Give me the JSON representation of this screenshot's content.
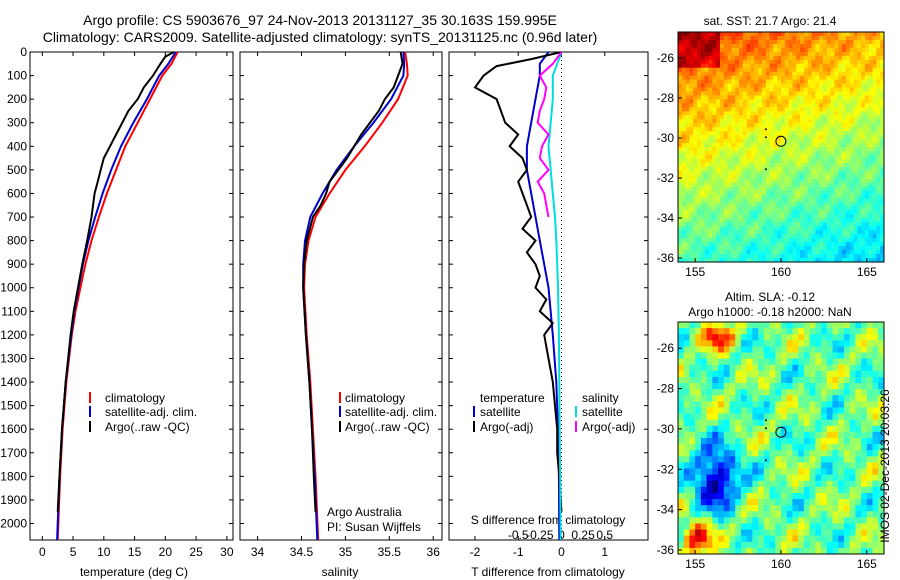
{
  "titles": {
    "line1": "Argo profile: CS 5903676_97 24-Nov-2013 20131127_35 30.163S 159.995E",
    "line2": "Climatology: CARS2009. Satellite-adjusted climatology: synTS_20131125.nc (0.96d later)"
  },
  "stamp": "IMOS 02-Dec-2013 20:03:26",
  "colors": {
    "climatology": "#ff0000",
    "satellite": "#0000cc",
    "argo": "#000000",
    "sal_satellite": "#00dddd",
    "sal_argo": "#ff00ff"
  },
  "chart_data": [
    {
      "id": "temperature",
      "type": "line",
      "xlabel": "temperature (deg C)",
      "ylabel": "",
      "xlim": [
        -2,
        31
      ],
      "ylim": [
        2070,
        0
      ],
      "x_ticks": [
        "0",
        "5",
        "10",
        "15",
        "20",
        "25",
        "30"
      ],
      "x_tick_values": [
        0,
        5,
        10,
        15,
        20,
        25,
        30
      ],
      "y_ticks": [
        "0",
        "100",
        "200",
        "300",
        "400",
        "500",
        "600",
        "700",
        "800",
        "900",
        "1000",
        "1100",
        "1200",
        "1300",
        "1400",
        "1500",
        "1600",
        "1700",
        "1800",
        "1900",
        "2000"
      ],
      "y_tick_values": [
        0,
        100,
        200,
        300,
        400,
        500,
        600,
        700,
        800,
        900,
        1000,
        1100,
        1200,
        1300,
        1400,
        1500,
        1600,
        1700,
        1800,
        1900,
        2000
      ],
      "legend": [
        "climatology",
        "satellite-adj. clim.",
        "Argo(..raw -QC)"
      ],
      "series": [
        {
          "name": "climatology",
          "color": "#ff0000",
          "depth": [
            0,
            50,
            100,
            200,
            300,
            400,
            500,
            600,
            700,
            800,
            900,
            1000,
            1100,
            1200,
            1400,
            1600,
            1800,
            2070
          ],
          "values": [
            22,
            21,
            19.5,
            17.5,
            15.5,
            13.5,
            12.0,
            10.5,
            9.2,
            8.0,
            7.0,
            6.2,
            5.4,
            4.8,
            3.9,
            3.3,
            2.9,
            2.5
          ]
        },
        {
          "name": "satellite-adj. clim.",
          "color": "#0000cc",
          "depth": [
            0,
            50,
            100,
            200,
            300,
            400,
            500,
            600,
            700,
            800,
            900,
            1000,
            1100,
            1200,
            1400,
            1600,
            1800,
            2070
          ],
          "values": [
            21.7,
            20.5,
            19.0,
            17.0,
            14.8,
            12.8,
            11.2,
            9.8,
            8.6,
            7.5,
            6.6,
            5.9,
            5.2,
            4.7,
            3.8,
            3.2,
            2.8,
            2.4
          ]
        },
        {
          "name": "Argo(..raw -QC)",
          "color": "#000000",
          "depth": [
            0,
            20,
            50,
            100,
            150,
            200,
            250,
            300,
            350,
            400,
            450,
            500,
            550,
            600,
            700,
            800,
            900,
            1000,
            1100,
            1200,
            1400,
            1600,
            1800,
            1950
          ],
          "values": [
            21.4,
            20.0,
            19.2,
            18.0,
            16.5,
            15.5,
            14.0,
            13.0,
            12.0,
            11.0,
            10.0,
            9.5,
            9.0,
            8.5,
            8.0,
            7.3,
            6.5,
            5.8,
            5.1,
            4.6,
            3.8,
            3.2,
            2.8,
            2.5
          ]
        }
      ]
    },
    {
      "id": "salinity",
      "type": "line",
      "xlabel": "salinity",
      "ylabel": "",
      "xlim": [
        33.8,
        36.1
      ],
      "ylim": [
        2070,
        0
      ],
      "x_ticks": [
        "34",
        "34.5",
        "35",
        "35.5",
        "36"
      ],
      "x_tick_values": [
        34,
        34.5,
        35,
        35.5,
        36
      ],
      "legend": [
        "climatology",
        "satellite-adj. clim.",
        "Argo(..raw -QC)"
      ],
      "annotation": [
        "Argo Australia",
        "PI: Susan Wijffels"
      ],
      "series": [
        {
          "name": "climatology",
          "color": "#ff0000",
          "depth": [
            0,
            50,
            100,
            200,
            300,
            400,
            500,
            600,
            700,
            800,
            900,
            1000,
            1200,
            1400,
            1600,
            1800,
            2070
          ],
          "values": [
            35.68,
            35.7,
            35.71,
            35.6,
            35.42,
            35.22,
            35.0,
            34.82,
            34.66,
            34.58,
            34.54,
            34.53,
            34.56,
            34.6,
            34.63,
            34.66,
            34.69
          ]
        },
        {
          "name": "satellite-adj. clim.",
          "color": "#0000cc",
          "depth": [
            0,
            50,
            100,
            200,
            300,
            400,
            500,
            600,
            700,
            800,
            900,
            1000,
            1200,
            1400,
            1600,
            1800,
            2070
          ],
          "values": [
            35.66,
            35.67,
            35.66,
            35.52,
            35.32,
            35.1,
            34.9,
            34.74,
            34.6,
            34.54,
            34.52,
            34.52,
            34.55,
            34.59,
            34.62,
            34.65,
            34.68
          ]
        },
        {
          "name": "Argo(..raw -QC)",
          "color": "#000000",
          "depth": [
            0,
            50,
            100,
            150,
            200,
            250,
            300,
            350,
            400,
            450,
            500,
            550,
            600,
            650,
            700,
            800,
            900,
            1000,
            1200,
            1400,
            1600,
            1800,
            1950
          ],
          "values": [
            35.63,
            35.65,
            35.6,
            35.55,
            35.45,
            35.38,
            35.28,
            35.18,
            35.1,
            35.02,
            34.92,
            34.82,
            34.78,
            34.72,
            34.63,
            34.56,
            34.53,
            34.52,
            34.55,
            34.59,
            34.62,
            34.64,
            34.66
          ]
        }
      ]
    },
    {
      "id": "difference",
      "type": "line",
      "xlabel": "T difference from climatology",
      "ylabel": "",
      "xlim": [
        -2.6,
        2.0
      ],
      "ylim": [
        2070,
        0
      ],
      "x_ticks": [
        "-2",
        "-1",
        "0",
        "1"
      ],
      "x_tick_values": [
        -2,
        -1,
        0,
        1
      ],
      "top_ticks": [
        "-0.5",
        "-0.25",
        "0",
        "0.25",
        "0.5"
      ],
      "top_tick_values": [
        -1.0,
        -0.5,
        0,
        0.5,
        1.0
      ],
      "top_label": "S difference from climatology",
      "legend_temperature_title": "temperature",
      "legend_salinity_title": "salinity",
      "legend": [
        "satellite",
        "Argo(-adj)",
        "satellite",
        "Argo(-adj)"
      ],
      "series": [
        {
          "name": "satellite",
          "group": "temperature",
          "color": "#0000cc",
          "depth": [
            0,
            50,
            100,
            200,
            300,
            400,
            500,
            600,
            700,
            800,
            900,
            1000,
            1200,
            1400,
            1600,
            1800,
            2070
          ],
          "values": [
            -0.3,
            -0.5,
            -0.5,
            -0.6,
            -0.7,
            -0.8,
            -0.8,
            -0.7,
            -0.6,
            -0.5,
            -0.4,
            -0.3,
            -0.2,
            -0.12,
            -0.08,
            -0.06,
            -0.05
          ]
        },
        {
          "name": "Argo(-adj)",
          "group": "temperature",
          "color": "#000000",
          "depth": [
            0,
            30,
            60,
            100,
            150,
            200,
            250,
            300,
            350,
            400,
            450,
            500,
            550,
            600,
            650,
            700,
            750,
            800,
            850,
            900,
            950,
            1000,
            1050,
            1100,
            1150,
            1200,
            1300,
            1400,
            1500,
            1600,
            1700,
            1800,
            1950
          ],
          "values": [
            0.0,
            -0.7,
            -1.5,
            -1.8,
            -2.0,
            -1.5,
            -1.4,
            -1.3,
            -1.0,
            -1.2,
            -0.9,
            -0.8,
            -1.0,
            -0.9,
            -0.8,
            -0.7,
            -0.9,
            -0.6,
            -0.8,
            -0.6,
            -0.5,
            -0.6,
            -0.35,
            -0.5,
            -0.2,
            -0.4,
            -0.3,
            -0.2,
            -0.15,
            -0.1,
            -0.1,
            -0.05,
            0.0
          ]
        },
        {
          "name": "satellite",
          "group": "salinity",
          "color": "#00dddd",
          "depth": [
            0,
            50,
            100,
            200,
            300,
            400,
            500,
            600,
            700,
            800,
            900,
            1000,
            1200,
            1400,
            1600,
            1800,
            2070
          ],
          "values": [
            0.0,
            -0.1,
            -0.2,
            -0.2,
            -0.25,
            -0.3,
            -0.25,
            -0.2,
            -0.15,
            -0.12,
            -0.1,
            -0.08,
            -0.06,
            -0.05,
            -0.04,
            -0.03,
            -0.02
          ]
        },
        {
          "name": "Argo(-adj)",
          "group": "salinity",
          "color": "#ff00ff",
          "depth": [
            0,
            50,
            100,
            150,
            200,
            250,
            300,
            350,
            400,
            450,
            500,
            550,
            600,
            650,
            700
          ],
          "values": [
            0.0,
            -0.2,
            -0.5,
            -0.35,
            -0.4,
            -0.5,
            -0.55,
            -0.3,
            -0.45,
            -0.5,
            -0.3,
            -0.55,
            -0.4,
            -0.35,
            -0.3
          ]
        }
      ]
    },
    {
      "id": "sst_map",
      "type": "heatmap",
      "title": "sat. SST: 21.7 Argo: 21.4",
      "x_ticks": [
        "155",
        "160",
        "165"
      ],
      "x_tick_values": [
        155,
        160,
        165
      ],
      "y_ticks": [
        "-26",
        "-28",
        "-30",
        "-32",
        "-34",
        "-36"
      ],
      "y_tick_values": [
        -26,
        -28,
        -30,
        -32,
        -34,
        -36
      ],
      "xlim": [
        154,
        166
      ],
      "ylim": [
        -36.2,
        -24.7
      ],
      "marker": {
        "lon": 159.995,
        "lat": -30.163
      }
    },
    {
      "id": "sla_map",
      "type": "heatmap",
      "title": "Altim. SLA: -0.12",
      "subtitle": "Argo h1000: -0.18 h2000: NaN",
      "x_ticks": [
        "155",
        "160",
        "165"
      ],
      "x_tick_values": [
        155,
        160,
        165
      ],
      "y_ticks": [
        "-26",
        "-28",
        "-30",
        "-32",
        "-34",
        "-36"
      ],
      "y_tick_values": [
        -26,
        -28,
        -30,
        -32,
        -34,
        -36
      ],
      "xlim": [
        154,
        166
      ],
      "ylim": [
        -36.2,
        -24.7
      ],
      "marker": {
        "lon": 159.995,
        "lat": -30.163
      }
    }
  ]
}
